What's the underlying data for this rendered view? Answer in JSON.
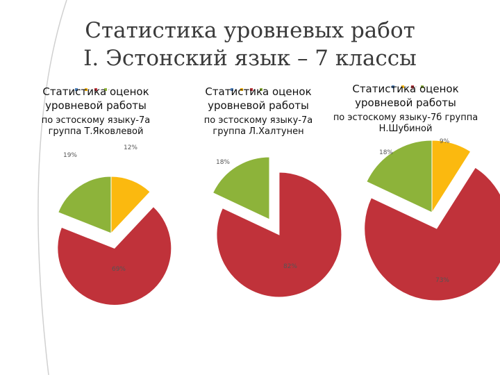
{
  "slide": {
    "title_line1": "Статистика уровневых работ",
    "title_line2": "I. Эстонский язык – 7 классы"
  },
  "colors": {
    "green": "#8db33a",
    "red": "#c0323a",
    "yellow": "#fbb90f",
    "blue": "#4a7ebb",
    "title_text": "#3a3a3a"
  },
  "chart_data": [
    {
      "type": "pie",
      "title_line1": "Статистика оценок",
      "title_line2": "уровневой работы",
      "subtitle_line1": "по эстоскому языку-7а",
      "subtitle_line2": "группа Т.Яковлевой",
      "legend": [
        "5",
        "4",
        "3",
        "2"
      ],
      "slices": [
        {
          "label": "12%",
          "value": 12,
          "color": "#fbb90f"
        },
        {
          "label": "69%",
          "value": 69,
          "color": "#c0323a"
        },
        {
          "label": "19%",
          "value": 19,
          "color": "#8db33a"
        }
      ]
    },
    {
      "type": "pie",
      "title_line1": "Статистика оценок",
      "title_line2": "уровневой работы",
      "subtitle_line1": "по эстоскому языку-7а",
      "subtitle_line2": "группа Л.Халтунен",
      "legend": [
        "5",
        "4",
        "3",
        "2"
      ],
      "slices": [
        {
          "label": "82%",
          "value": 82,
          "color": "#c0323a"
        },
        {
          "label": "18%",
          "value": 18,
          "color": "#8db33a"
        }
      ]
    },
    {
      "type": "pie",
      "title_line1": "Статистика оценок",
      "title_line2": "уровневой работы",
      "subtitle_line1": "по эстоскому языку-7б группа",
      "subtitle_line2": "Н.Шубиной",
      "legend": [
        "5",
        "4",
        "3",
        "2"
      ],
      "slices": [
        {
          "label": "9%",
          "value": 9,
          "color": "#fbb90f"
        },
        {
          "label": "73%",
          "value": 73,
          "color": "#c0323a"
        },
        {
          "label": "18%",
          "value": 18,
          "color": "#8db33a"
        }
      ]
    }
  ]
}
